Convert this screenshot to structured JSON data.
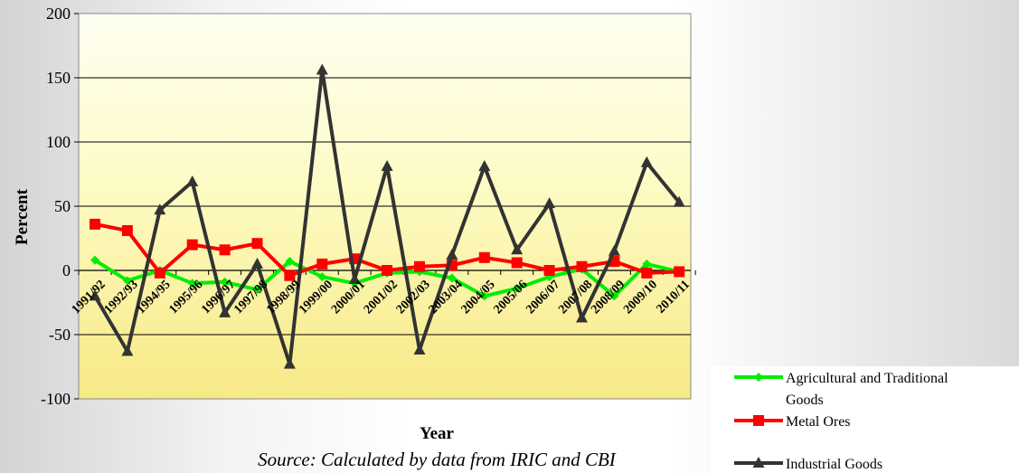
{
  "chart_data": {
    "type": "line",
    "categories": [
      "1991/92",
      "1992/93",
      "1994/95",
      "1995/96",
      "1996/97",
      "1997/98",
      "1998/99",
      "1999/00",
      "2000/01",
      "2001/02",
      "2002/03",
      "2003/04",
      "2004/05",
      "2005/06",
      "2006/07",
      "2007/08",
      "2008/09",
      "2009/10",
      "2010/11"
    ],
    "series": [
      {
        "name": "Agricultural and Traditional Goods",
        "color": "#00ee00",
        "marker": "diamond",
        "values": [
          8,
          -8,
          0,
          -10,
          -9,
          -15,
          7,
          -5,
          -10,
          -2,
          -1,
          -6,
          -20,
          -14,
          -5,
          1,
          -20,
          5,
          -1
        ]
      },
      {
        "name": "Metal Ores",
        "color": "#ff0000",
        "marker": "square",
        "values": [
          36,
          31,
          -2,
          20,
          16,
          21,
          -4,
          5,
          9,
          0,
          3,
          4,
          10,
          6,
          0,
          3,
          7,
          -2,
          -1
        ]
      },
      {
        "name": "Industrial Goods",
        "color": "#333333",
        "marker": "triangle",
        "values": [
          -20,
          -63,
          47,
          69,
          -33,
          5,
          -73,
          156,
          -7,
          81,
          -62,
          12,
          81,
          16,
          52,
          -37,
          15,
          84,
          53
        ]
      }
    ],
    "yticks": [
      200,
      150,
      100,
      50,
      0,
      -50,
      -100
    ],
    "ylim": [
      -100,
      200
    ],
    "xlabel": "Year",
    "ylabel": "Percent",
    "source_note": "Source: Calculated by data from IRIC and CBI",
    "grid": "horizontal",
    "legend_position": "bottom-right",
    "plot_background": "#ffffcc"
  }
}
